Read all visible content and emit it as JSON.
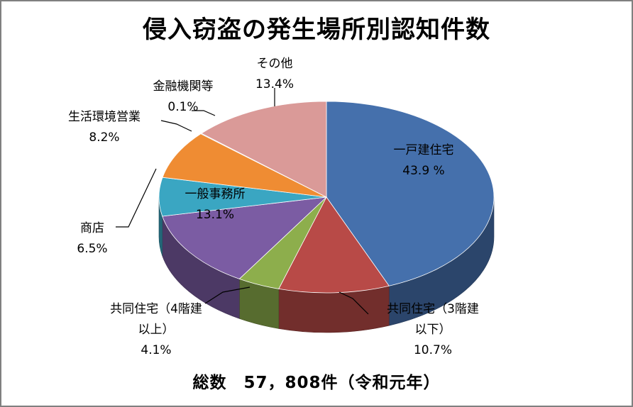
{
  "chart_data": {
    "type": "pie",
    "title": "侵入窃盗の発生場所別認知件数",
    "note": "総数　57，808件（令和元年）",
    "slices": [
      {
        "name_lines": [
          "一戸建住宅"
        ],
        "value": 43.9,
        "label": "43.9 %",
        "color": "#4570AC"
      },
      {
        "name_lines": [
          "共同住宅（3階建",
          "以下）"
        ],
        "value": 10.7,
        "label": "10.7%",
        "color": "#B84A47"
      },
      {
        "name_lines": [
          "共同住宅（4階建",
          "以上）"
        ],
        "value": 4.1,
        "label": "4.1%",
        "color": "#8DAE4C"
      },
      {
        "name_lines": [
          "一般事務所"
        ],
        "value": 13.1,
        "label": "13.1%",
        "color": "#7B5CA3"
      },
      {
        "name_lines": [
          "商店"
        ],
        "value": 6.5,
        "label": "6.5%",
        "color": "#3AA6C2"
      },
      {
        "name_lines": [
          "生活環境営業"
        ],
        "value": 8.2,
        "label": "8.2%",
        "color": "#EF8C33"
      },
      {
        "name_lines": [
          "金融機関等"
        ],
        "value": 0.1,
        "label": "0.1%",
        "color": "#94AFD8"
      },
      {
        "name_lines": [
          "その他"
        ],
        "value": 13.4,
        "label": "13.4%",
        "color": "#DA9A98"
      }
    ]
  }
}
